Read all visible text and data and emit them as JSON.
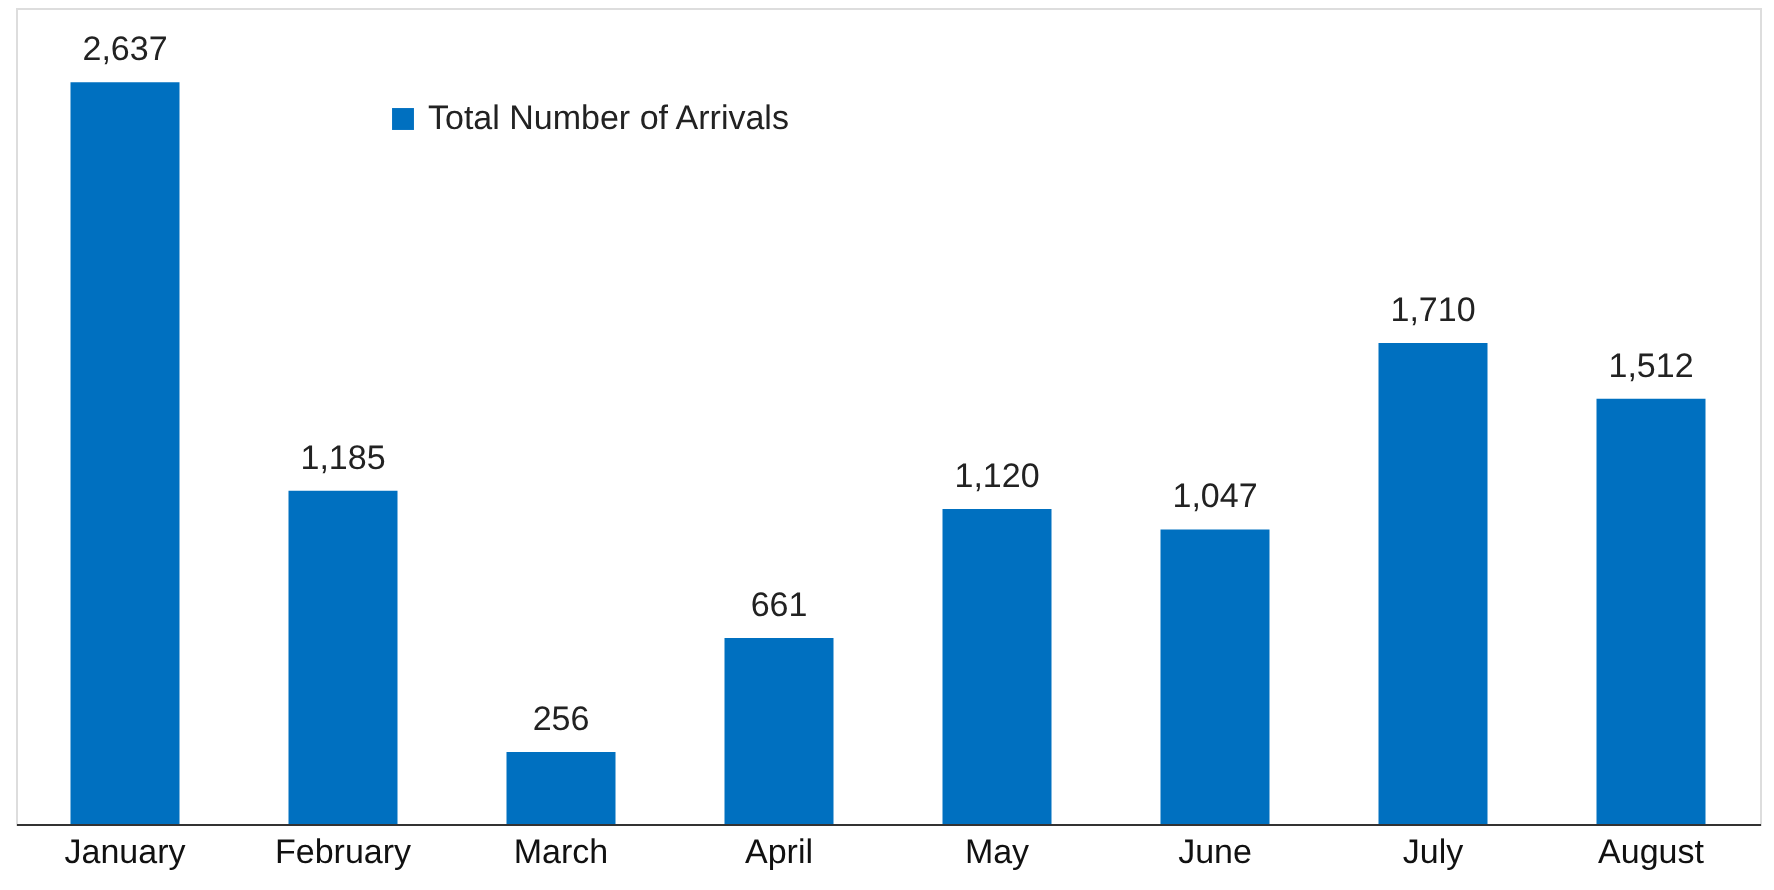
{
  "chart_data": {
    "type": "bar",
    "categories": [
      "January",
      "February",
      "March",
      "April",
      "May",
      "June",
      "July",
      "August"
    ],
    "series": [
      {
        "name": "Total Number of Arrivals",
        "color": "#0070c0",
        "values": [
          2637,
          1185,
          256,
          661,
          1120,
          1047,
          1710,
          1512
        ],
        "value_labels": [
          "2,637",
          "1,185",
          "256",
          "661",
          "1,120",
          "1,047",
          "1,710",
          "1,512"
        ]
      }
    ],
    "legend": "top left",
    "grid": false
  }
}
